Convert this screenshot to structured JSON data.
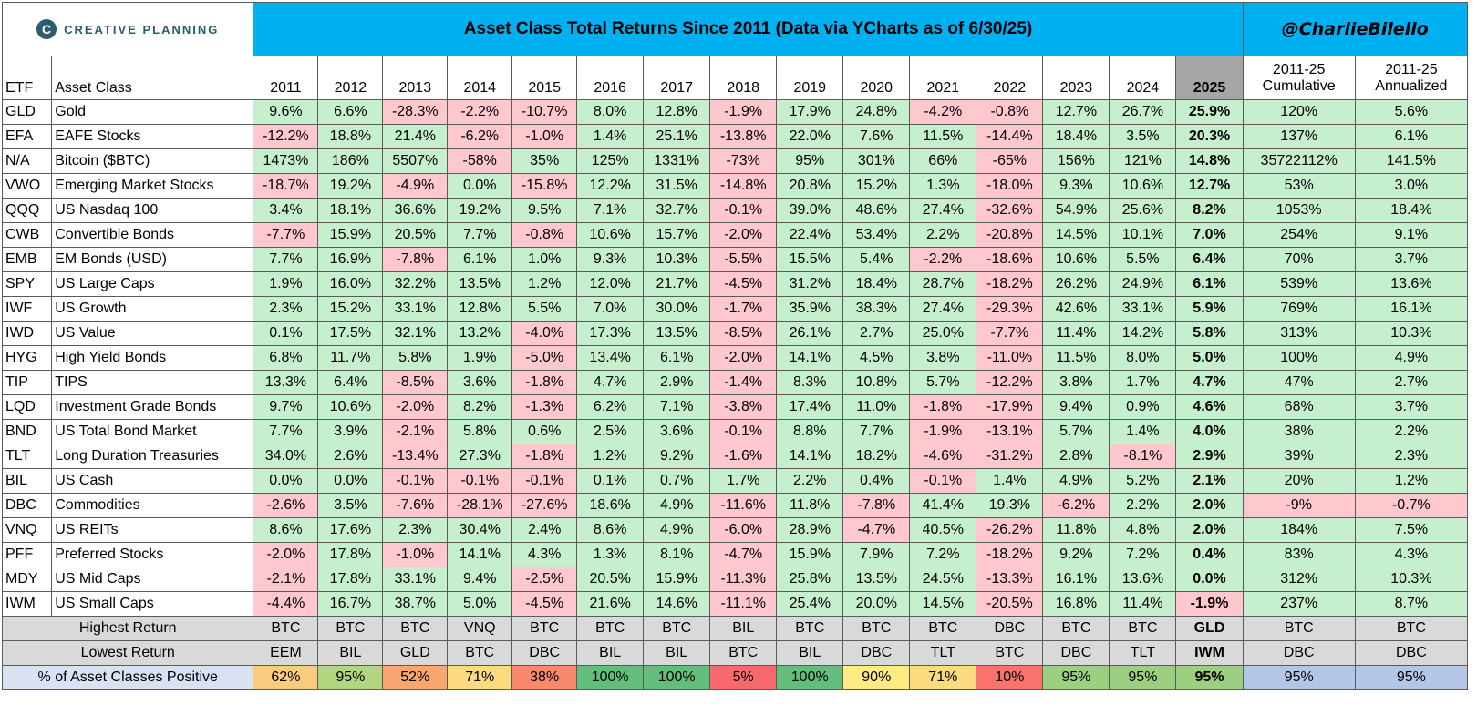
{
  "header": {
    "logo_text": "CREATIVE PLANNING",
    "logo_icon": "creative-planning-c-icon",
    "title": "Asset Class Total Returns Since 2011 (Data via YCharts as of 6/30/25)",
    "handle": "@CharlieBilello"
  },
  "columns": {
    "etf": "ETF",
    "asset": "Asset Class",
    "years": [
      "2011",
      "2012",
      "2013",
      "2014",
      "2015",
      "2016",
      "2017",
      "2018",
      "2019",
      "2020",
      "2021",
      "2022",
      "2023",
      "2024",
      "2025"
    ],
    "cumulative_line1": "2011-25",
    "cumulative_line2": "Cumulative",
    "annualized_line1": "2011-25",
    "annualized_line2": "Annualized"
  },
  "colors": {
    "title_bg": "#00b0f0",
    "positive_bg": "#c6efce",
    "negative_bg": "#ffc7ce",
    "summary_bg": "#d9d9d9",
    "pct_label_bg": "#d9e1f2",
    "col_2025_header_bg": "#a6a6a6"
  },
  "chart_data": {
    "type": "table",
    "title": "Asset Class Total Returns Since 2011 (Data via YCharts as of 6/30/25)",
    "rows": [
      {
        "etf": "GLD",
        "asset": "Gold",
        "values": [
          "9.6%",
          "6.6%",
          "-28.3%",
          "-2.2%",
          "-10.7%",
          "8.0%",
          "12.8%",
          "-1.9%",
          "17.9%",
          "24.8%",
          "-4.2%",
          "-0.8%",
          "12.7%",
          "26.7%",
          "25.9%"
        ],
        "cumulative": "120%",
        "annualized": "5.6%"
      },
      {
        "etf": "EFA",
        "asset": "EAFE Stocks",
        "values": [
          "-12.2%",
          "18.8%",
          "21.4%",
          "-6.2%",
          "-1.0%",
          "1.4%",
          "25.1%",
          "-13.8%",
          "22.0%",
          "7.6%",
          "11.5%",
          "-14.4%",
          "18.4%",
          "3.5%",
          "20.3%"
        ],
        "cumulative": "137%",
        "annualized": "6.1%"
      },
      {
        "etf": "N/A",
        "asset": "Bitcoin ($BTC)",
        "values": [
          "1473%",
          "186%",
          "5507%",
          "-58%",
          "35%",
          "125%",
          "1331%",
          "-73%",
          "95%",
          "301%",
          "66%",
          "-65%",
          "156%",
          "121%",
          "14.8%"
        ],
        "cumulative": "35722112%",
        "annualized": "141.5%"
      },
      {
        "etf": "VWO",
        "asset": "Emerging Market Stocks",
        "values": [
          "-18.7%",
          "19.2%",
          "-4.9%",
          "0.0%",
          "-15.8%",
          "12.2%",
          "31.5%",
          "-14.8%",
          "20.8%",
          "15.2%",
          "1.3%",
          "-18.0%",
          "9.3%",
          "10.6%",
          "12.7%"
        ],
        "cumulative": "53%",
        "annualized": "3.0%"
      },
      {
        "etf": "QQQ",
        "asset": "US Nasdaq 100",
        "values": [
          "3.4%",
          "18.1%",
          "36.6%",
          "19.2%",
          "9.5%",
          "7.1%",
          "32.7%",
          "-0.1%",
          "39.0%",
          "48.6%",
          "27.4%",
          "-32.6%",
          "54.9%",
          "25.6%",
          "8.2%"
        ],
        "cumulative": "1053%",
        "annualized": "18.4%"
      },
      {
        "etf": "CWB",
        "asset": "Convertible Bonds",
        "values": [
          "-7.7%",
          "15.9%",
          "20.5%",
          "7.7%",
          "-0.8%",
          "10.6%",
          "15.7%",
          "-2.0%",
          "22.4%",
          "53.4%",
          "2.2%",
          "-20.8%",
          "14.5%",
          "10.1%",
          "7.0%"
        ],
        "cumulative": "254%",
        "annualized": "9.1%"
      },
      {
        "etf": "EMB",
        "asset": "EM Bonds (USD)",
        "values": [
          "7.7%",
          "16.9%",
          "-7.8%",
          "6.1%",
          "1.0%",
          "9.3%",
          "10.3%",
          "-5.5%",
          "15.5%",
          "5.4%",
          "-2.2%",
          "-18.6%",
          "10.6%",
          "5.5%",
          "6.4%"
        ],
        "cumulative": "70%",
        "annualized": "3.7%"
      },
      {
        "etf": "SPY",
        "asset": "US Large Caps",
        "values": [
          "1.9%",
          "16.0%",
          "32.2%",
          "13.5%",
          "1.2%",
          "12.0%",
          "21.7%",
          "-4.5%",
          "31.2%",
          "18.4%",
          "28.7%",
          "-18.2%",
          "26.2%",
          "24.9%",
          "6.1%"
        ],
        "cumulative": "539%",
        "annualized": "13.6%"
      },
      {
        "etf": "IWF",
        "asset": "US Growth",
        "values": [
          "2.3%",
          "15.2%",
          "33.1%",
          "12.8%",
          "5.5%",
          "7.0%",
          "30.0%",
          "-1.7%",
          "35.9%",
          "38.3%",
          "27.4%",
          "-29.3%",
          "42.6%",
          "33.1%",
          "5.9%"
        ],
        "cumulative": "769%",
        "annualized": "16.1%"
      },
      {
        "etf": "IWD",
        "asset": "US Value",
        "values": [
          "0.1%",
          "17.5%",
          "32.1%",
          "13.2%",
          "-4.0%",
          "17.3%",
          "13.5%",
          "-8.5%",
          "26.1%",
          "2.7%",
          "25.0%",
          "-7.7%",
          "11.4%",
          "14.2%",
          "5.8%"
        ],
        "cumulative": "313%",
        "annualized": "10.3%"
      },
      {
        "etf": "HYG",
        "asset": "High Yield Bonds",
        "values": [
          "6.8%",
          "11.7%",
          "5.8%",
          "1.9%",
          "-5.0%",
          "13.4%",
          "6.1%",
          "-2.0%",
          "14.1%",
          "4.5%",
          "3.8%",
          "-11.0%",
          "11.5%",
          "8.0%",
          "5.0%"
        ],
        "cumulative": "100%",
        "annualized": "4.9%"
      },
      {
        "etf": "TIP",
        "asset": "TIPS",
        "values": [
          "13.3%",
          "6.4%",
          "-8.5%",
          "3.6%",
          "-1.8%",
          "4.7%",
          "2.9%",
          "-1.4%",
          "8.3%",
          "10.8%",
          "5.7%",
          "-12.2%",
          "3.8%",
          "1.7%",
          "4.7%"
        ],
        "cumulative": "47%",
        "annualized": "2.7%"
      },
      {
        "etf": "LQD",
        "asset": "Investment Grade Bonds",
        "values": [
          "9.7%",
          "10.6%",
          "-2.0%",
          "8.2%",
          "-1.3%",
          "6.2%",
          "7.1%",
          "-3.8%",
          "17.4%",
          "11.0%",
          "-1.8%",
          "-17.9%",
          "9.4%",
          "0.9%",
          "4.6%"
        ],
        "cumulative": "68%",
        "annualized": "3.7%"
      },
      {
        "etf": "BND",
        "asset": "US Total Bond Market",
        "values": [
          "7.7%",
          "3.9%",
          "-2.1%",
          "5.8%",
          "0.6%",
          "2.5%",
          "3.6%",
          "-0.1%",
          "8.8%",
          "7.7%",
          "-1.9%",
          "-13.1%",
          "5.7%",
          "1.4%",
          "4.0%"
        ],
        "cumulative": "38%",
        "annualized": "2.2%"
      },
      {
        "etf": "TLT",
        "asset": "Long Duration Treasuries",
        "values": [
          "34.0%",
          "2.6%",
          "-13.4%",
          "27.3%",
          "-1.8%",
          "1.2%",
          "9.2%",
          "-1.6%",
          "14.1%",
          "18.2%",
          "-4.6%",
          "-31.2%",
          "2.8%",
          "-8.1%",
          "2.9%"
        ],
        "cumulative": "39%",
        "annualized": "2.3%"
      },
      {
        "etf": "BIL",
        "asset": "US Cash",
        "values": [
          "0.0%",
          "0.0%",
          "-0.1%",
          "-0.1%",
          "-0.1%",
          "0.1%",
          "0.7%",
          "1.7%",
          "2.2%",
          "0.4%",
          "-0.1%",
          "1.4%",
          "4.9%",
          "5.2%",
          "2.1%"
        ],
        "cumulative": "20%",
        "annualized": "1.2%"
      },
      {
        "etf": "DBC",
        "asset": "Commodities",
        "values": [
          "-2.6%",
          "3.5%",
          "-7.6%",
          "-28.1%",
          "-27.6%",
          "18.6%",
          "4.9%",
          "-11.6%",
          "11.8%",
          "-7.8%",
          "41.4%",
          "19.3%",
          "-6.2%",
          "2.2%",
          "2.0%"
        ],
        "cumulative": "-9%",
        "annualized": "-0.7%"
      },
      {
        "etf": "VNQ",
        "asset": "US REITs",
        "values": [
          "8.6%",
          "17.6%",
          "2.3%",
          "30.4%",
          "2.4%",
          "8.6%",
          "4.9%",
          "-6.0%",
          "28.9%",
          "-4.7%",
          "40.5%",
          "-26.2%",
          "11.8%",
          "4.8%",
          "2.0%"
        ],
        "cumulative": "184%",
        "annualized": "7.5%"
      },
      {
        "etf": "PFF",
        "asset": "Preferred Stocks",
        "values": [
          "-2.0%",
          "17.8%",
          "-1.0%",
          "14.1%",
          "4.3%",
          "1.3%",
          "8.1%",
          "-4.7%",
          "15.9%",
          "7.9%",
          "7.2%",
          "-18.2%",
          "9.2%",
          "7.2%",
          "0.4%"
        ],
        "cumulative": "83%",
        "annualized": "4.3%"
      },
      {
        "etf": "MDY",
        "asset": "US Mid Caps",
        "values": [
          "-2.1%",
          "17.8%",
          "33.1%",
          "9.4%",
          "-2.5%",
          "20.5%",
          "15.9%",
          "-11.3%",
          "25.8%",
          "13.5%",
          "24.5%",
          "-13.3%",
          "16.1%",
          "13.6%",
          "0.0%"
        ],
        "cumulative": "312%",
        "annualized": "10.3%"
      },
      {
        "etf": "IWM",
        "asset": "US Small Caps",
        "values": [
          "-4.4%",
          "16.7%",
          "38.7%",
          "5.0%",
          "-4.5%",
          "21.6%",
          "14.6%",
          "-11.1%",
          "25.4%",
          "20.0%",
          "14.5%",
          "-20.5%",
          "16.8%",
          "11.4%",
          "-1.9%"
        ],
        "cumulative": "237%",
        "annualized": "8.7%"
      }
    ],
    "highest": {
      "label": "Highest Return",
      "values": [
        "BTC",
        "BTC",
        "BTC",
        "VNQ",
        "BTC",
        "BTC",
        "BTC",
        "BIL",
        "BTC",
        "BTC",
        "BTC",
        "DBC",
        "BTC",
        "BTC",
        "GLD",
        "BTC",
        "BTC"
      ]
    },
    "lowest": {
      "label": "Lowest Return",
      "values": [
        "EEM",
        "BIL",
        "GLD",
        "BTC",
        "DBC",
        "BIL",
        "BIL",
        "BTC",
        "BIL",
        "DBC",
        "TLT",
        "BTC",
        "DBC",
        "TLT",
        "IWM",
        "DBC",
        "DBC"
      ]
    },
    "positive_pct": {
      "label": "% of Asset Classes Positive",
      "values": [
        "62%",
        "95%",
        "52%",
        "71%",
        "38%",
        "100%",
        "100%",
        "5%",
        "100%",
        "90%",
        "71%",
        "10%",
        "95%",
        "95%",
        "95%",
        "95%",
        "95%"
      ],
      "colors": [
        "#f8cb7e",
        "#b2d580",
        "#f9a66f",
        "#fcda7f",
        "#f8896b",
        "#63be7b",
        "#63be7b",
        "#f8696b",
        "#63be7b",
        "#ffeb84",
        "#fcda7f",
        "#f8736c",
        "#9ccf7f",
        "#9ccf7f",
        "#9ccf7f",
        "#b4c6e7",
        "#b4c6e7"
      ]
    }
  }
}
